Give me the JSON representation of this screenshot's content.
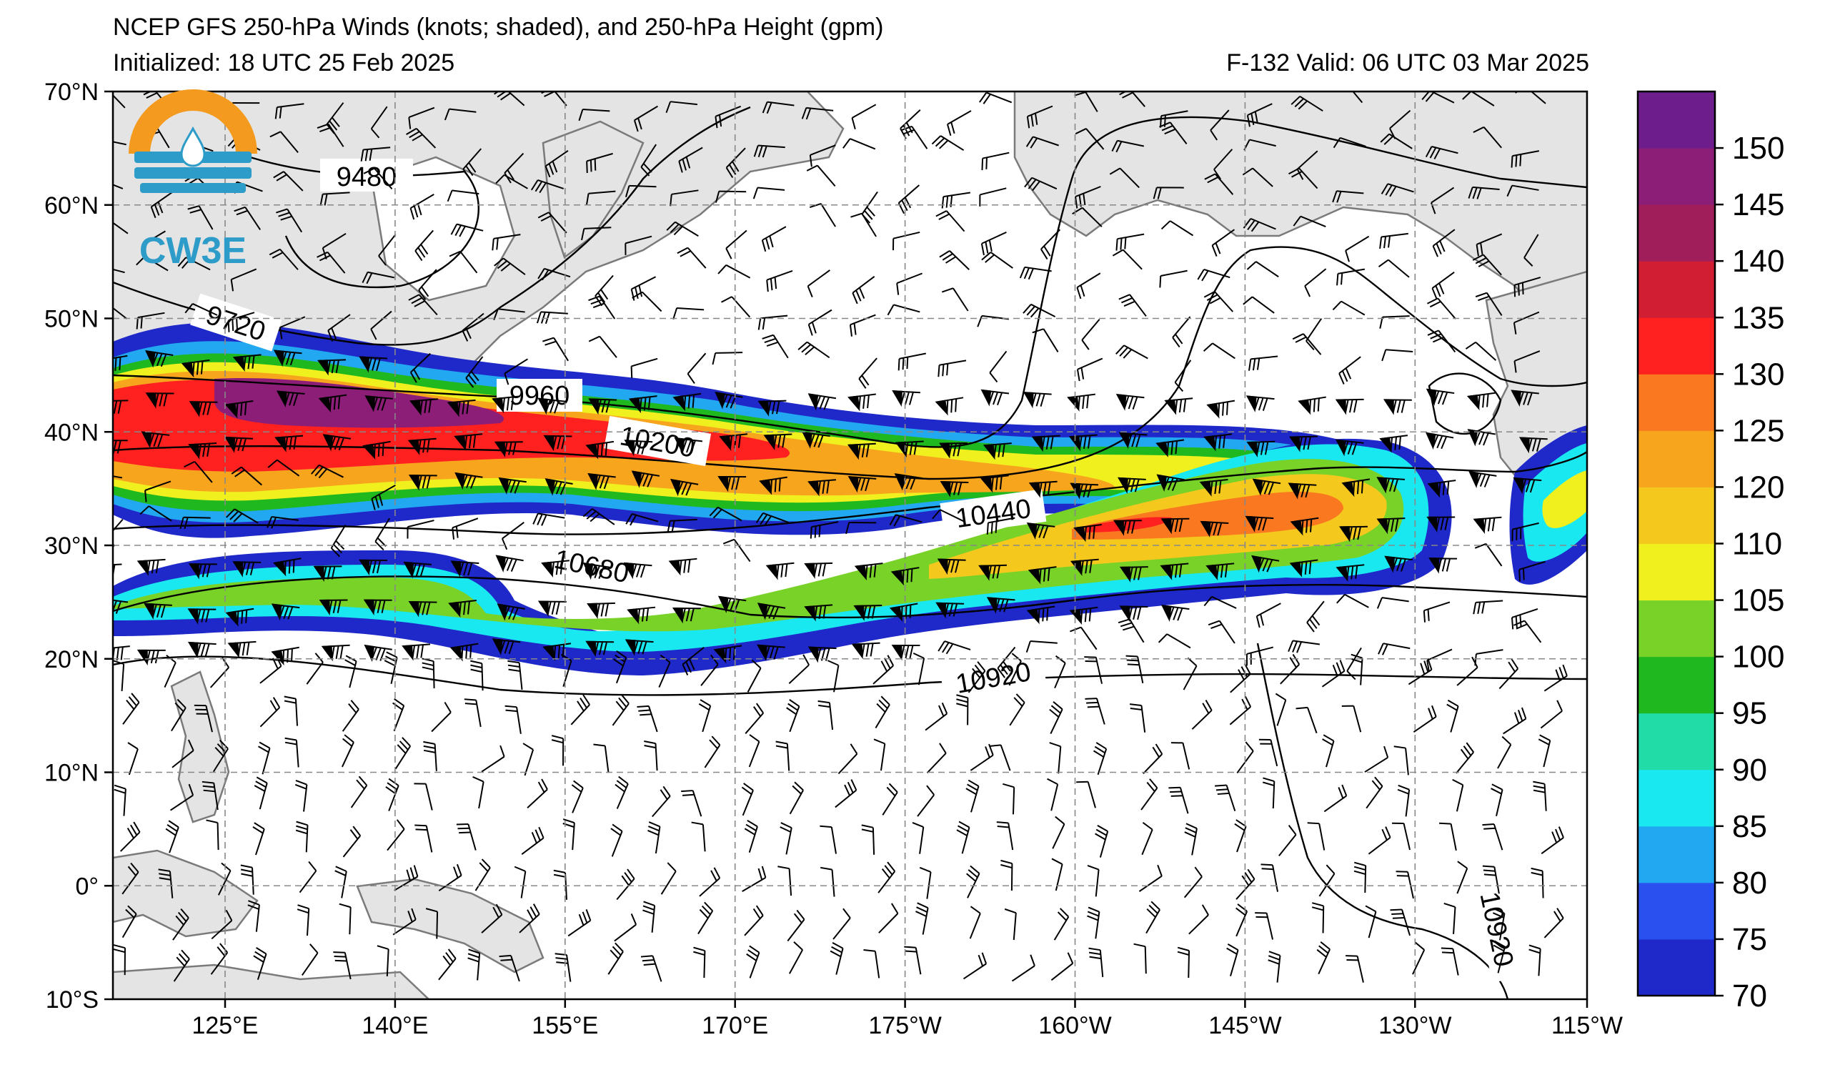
{
  "header": {
    "title": "NCEP GFS 250-hPa Winds (knots; shaded), and 250-hPa Height (gpm)",
    "initialized": "Initialized: 18 UTC 25 Feb 2025",
    "valid": "F-132  Valid: 06 UTC 03 Mar 2025"
  },
  "logo": {
    "text": "CW3E"
  },
  "map": {
    "lon_labels": [
      "125°E",
      "140°E",
      "155°E",
      "170°E",
      "175°W",
      "160°W",
      "145°W",
      "130°W",
      "115°W"
    ],
    "lat_labels": [
      "70°N",
      "60°N",
      "50°N",
      "40°N",
      "30°N",
      "20°N",
      "10°N",
      "0°",
      "10°S"
    ],
    "height_contours": [
      {
        "label": "9480"
      },
      {
        "label": "9720"
      },
      {
        "label": "9960"
      },
      {
        "label": "10200"
      },
      {
        "label": "10440"
      },
      {
        "label": "10680"
      },
      {
        "label": "10920"
      },
      {
        "label": "10920"
      }
    ]
  },
  "colorbar": {
    "levels": [
      "70",
      "75",
      "80",
      "85",
      "90",
      "95",
      "100",
      "105",
      "110",
      "120",
      "125",
      "130",
      "135",
      "140",
      "145",
      "150"
    ],
    "colors": [
      "#1f28c8",
      "#2a50f0",
      "#22a8f0",
      "#1ae8f0",
      "#22dca8",
      "#1fb91f",
      "#78d228",
      "#f0f01e",
      "#f5c81e",
      "#f8a51e",
      "#fa7820",
      "#ff2020",
      "#d21e32",
      "#a01e5a",
      "#8c1e78",
      "#6e1e8c"
    ]
  },
  "colors": {
    "land": "#e4e4e4",
    "coast": "#7a7a7a",
    "grid": "#888888"
  }
}
